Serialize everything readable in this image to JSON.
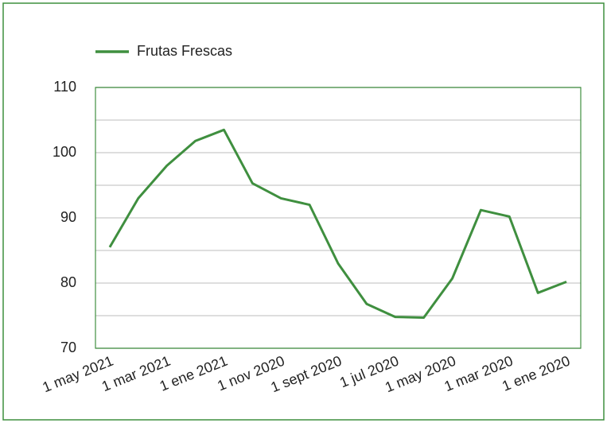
{
  "chart_data": {
    "type": "line",
    "categories": [
      "1 may 2021",
      null,
      "1 mar 2021",
      null,
      "1 ene 2021",
      null,
      "1 nov 2020",
      null,
      "1 sept 2020",
      null,
      "1 jul 2020",
      null,
      "1 may 2020",
      null,
      "1 mar 2020",
      null,
      "1 ene 2020"
    ],
    "series": [
      {
        "name": "Frutas Frescas",
        "color": "#3f8f3f",
        "values": [
          85.5,
          93,
          98,
          101.8,
          103.5,
          95.3,
          93,
          92,
          83,
          76.8,
          74.8,
          74.7,
          80.7,
          91.2,
          90.2,
          78.5,
          80.2
        ]
      }
    ],
    "ylim": [
      70,
      110
    ],
    "yticks": [
      70,
      80,
      90,
      100,
      110
    ],
    "minor_yticks": [
      75,
      85,
      95,
      105
    ],
    "grid": true,
    "legend": "top-left"
  }
}
